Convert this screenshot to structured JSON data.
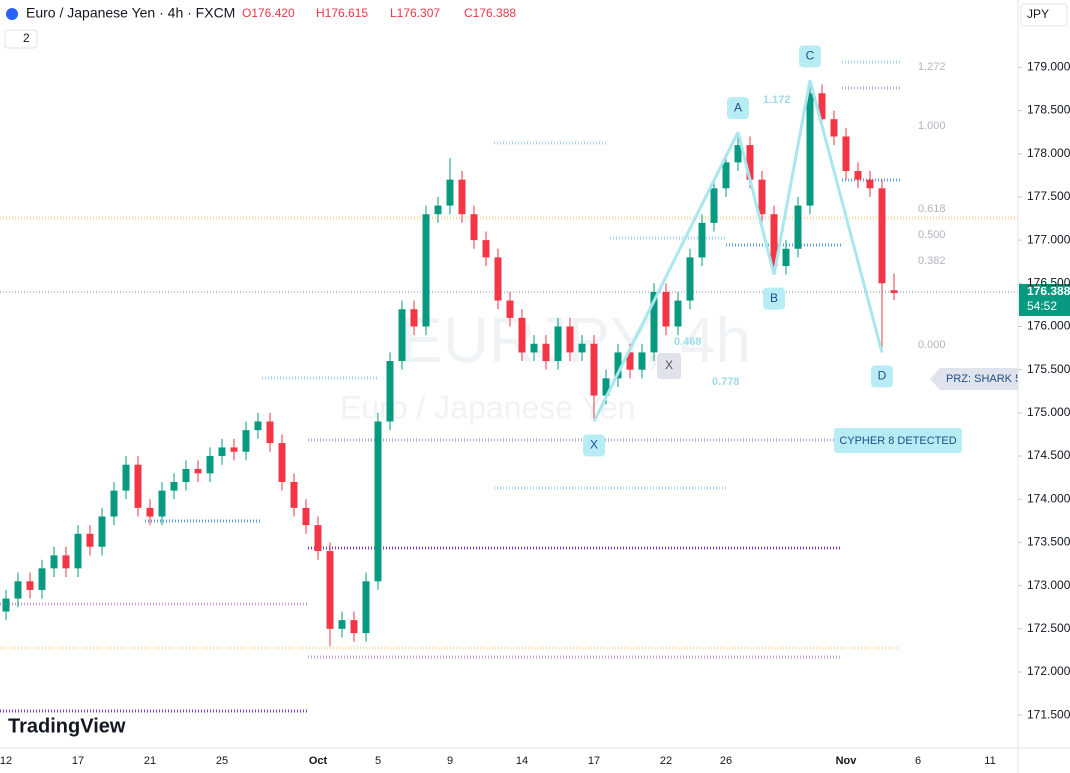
{
  "header": {
    "symbol": "Euro / Japanese Yen · 4h · FXCM",
    "ohlc": [
      "O176.420",
      "H176.615",
      "L176.307",
      "C176.388"
    ],
    "indicator_count": "2",
    "currency": "JPY",
    "price_tag": "176.388",
    "countdown": "54:52",
    "watermark": "EURJPY, 4h",
    "watermark_sub": "Euro / Japanese Yen",
    "logo": "TradingView"
  },
  "chart_data": {
    "type": "candlestick",
    "categories": [
      "12",
      null,
      null,
      null,
      null,
      null,
      "17",
      null,
      null,
      null,
      null,
      null,
      "21",
      null,
      null,
      null,
      null,
      null,
      "25",
      null,
      null,
      null,
      null,
      null,
      null,
      null,
      "Oct",
      null,
      null,
      null,
      null,
      "5",
      null,
      null,
      null,
      null,
      null,
      "9",
      null,
      null,
      null,
      null,
      null,
      "14",
      null,
      null,
      null,
      null,
      null,
      "17",
      null,
      null,
      null,
      null,
      null,
      "22",
      null,
      null,
      null,
      null,
      "26",
      null,
      null,
      null,
      null,
      null,
      null,
      null,
      null,
      null,
      "Nov",
      null,
      null,
      null,
      null,
      null,
      "6",
      null,
      null,
      null,
      null,
      null,
      "11",
      null
    ],
    "open": [
      172.7,
      172.85,
      173.05,
      172.95,
      173.2,
      173.35,
      173.2,
      173.6,
      173.45,
      173.8,
      174.1,
      174.4,
      173.9,
      173.8,
      174.1,
      174.2,
      174.35,
      174.3,
      174.5,
      174.6,
      174.55,
      174.8,
      174.9,
      174.65,
      174.2,
      173.9,
      173.7,
      173.4,
      172.5,
      172.6,
      172.45,
      173.05,
      174.9,
      175.6,
      176.2,
      176.0,
      177.3,
      177.4,
      177.7,
      177.3,
      177.0,
      176.8,
      176.3,
      176.1,
      175.7,
      175.8,
      175.6,
      176.0,
      175.7,
      175.8,
      175.2,
      175.4,
      175.7,
      175.5,
      175.7,
      176.4,
      176.0,
      176.3,
      176.8,
      177.2,
      177.6,
      177.9,
      178.1,
      177.7,
      177.3,
      176.7,
      176.9,
      177.4,
      178.7,
      178.4,
      178.2,
      177.8,
      177.7,
      177.6,
      176.42,
      null,
      null,
      null,
      null,
      null,
      null,
      null,
      null,
      null
    ],
    "high": [
      172.95,
      173.15,
      173.15,
      173.3,
      173.45,
      173.45,
      173.7,
      173.7,
      173.9,
      174.2,
      174.5,
      174.5,
      174.0,
      174.2,
      174.3,
      174.45,
      174.45,
      174.6,
      174.7,
      174.7,
      174.9,
      175.0,
      175.0,
      174.75,
      174.3,
      174.0,
      173.8,
      173.5,
      172.7,
      172.7,
      173.15,
      175.0,
      175.7,
      176.3,
      176.3,
      177.4,
      177.5,
      177.95,
      177.8,
      177.4,
      177.1,
      176.9,
      176.4,
      176.2,
      175.9,
      175.9,
      176.1,
      176.1,
      175.9,
      175.9,
      175.5,
      175.8,
      175.8,
      175.8,
      176.5,
      176.5,
      176.4,
      176.9,
      177.3,
      177.7,
      178.0,
      178.25,
      178.2,
      177.8,
      177.4,
      177.0,
      177.5,
      178.85,
      178.8,
      178.5,
      178.3,
      177.9,
      177.8,
      177.7,
      176.615,
      null,
      null,
      null,
      null,
      null,
      null,
      null,
      null,
      null
    ],
    "low": [
      172.6,
      172.75,
      172.85,
      172.85,
      173.1,
      173.1,
      173.1,
      173.35,
      173.35,
      173.7,
      174.0,
      173.8,
      173.7,
      173.7,
      174.0,
      174.1,
      174.2,
      174.2,
      174.4,
      174.45,
      174.45,
      174.7,
      174.55,
      174.1,
      173.8,
      173.6,
      173.3,
      172.3,
      172.4,
      172.35,
      172.35,
      172.95,
      174.8,
      175.5,
      175.9,
      175.9,
      177.2,
      177.3,
      177.2,
      176.9,
      176.7,
      176.2,
      176.0,
      175.6,
      175.6,
      175.5,
      175.5,
      175.6,
      175.6,
      174.9,
      175.1,
      175.3,
      175.4,
      175.4,
      175.6,
      175.9,
      175.9,
      176.2,
      176.7,
      177.1,
      177.5,
      177.8,
      177.6,
      177.2,
      176.6,
      176.6,
      176.8,
      177.3,
      178.3,
      178.1,
      177.7,
      177.6,
      177.5,
      175.7,
      176.307,
      null,
      null,
      null,
      null,
      null,
      null,
      null,
      null,
      null
    ],
    "close": [
      172.85,
      173.05,
      172.95,
      173.2,
      173.35,
      173.2,
      173.6,
      173.45,
      173.8,
      174.1,
      174.4,
      173.9,
      173.8,
      174.1,
      174.2,
      174.35,
      174.3,
      174.5,
      174.6,
      174.55,
      174.8,
      174.9,
      174.65,
      174.2,
      173.9,
      173.7,
      173.4,
      172.5,
      172.6,
      172.45,
      173.05,
      174.9,
      175.6,
      176.2,
      176.0,
      177.3,
      177.4,
      177.7,
      177.3,
      177.0,
      176.8,
      176.3,
      176.1,
      175.7,
      175.8,
      175.6,
      176.0,
      175.7,
      175.8,
      175.2,
      175.4,
      175.7,
      175.5,
      175.7,
      176.4,
      176.0,
      176.3,
      176.8,
      177.2,
      177.6,
      177.9,
      178.1,
      177.7,
      177.3,
      176.7,
      176.9,
      177.4,
      178.7,
      178.4,
      178.2,
      177.8,
      177.7,
      177.6,
      176.5,
      176.388,
      null,
      null,
      null,
      null,
      null,
      null,
      null,
      null,
      null
    ],
    "up_color": "#089981",
    "down_color": "#f23645",
    "ylim": [
      171.12,
      179.78
    ],
    "yticks": [
      {
        "value": 171.5,
        "label": "171.500"
      },
      {
        "value": 172,
        "label": "172.000"
      },
      {
        "value": 172.5,
        "label": "172.500"
      },
      {
        "value": 173,
        "label": "173.000"
      },
      {
        "value": 173.5,
        "label": "173.500"
      },
      {
        "value": 174,
        "label": "174.000"
      },
      {
        "value": 174.5,
        "label": "174.500"
      },
      {
        "value": 175,
        "label": "175.000"
      },
      {
        "value": 175.5,
        "label": "175.500"
      },
      {
        "value": 176,
        "label": "176.000"
      },
      {
        "value": 176.5,
        "label": "176.500"
      },
      {
        "value": 177,
        "label": "177.000"
      },
      {
        "value": 177.5,
        "label": "177.500"
      },
      {
        "value": 178,
        "label": "178.000"
      },
      {
        "value": 178.5,
        "label": "178.500"
      },
      {
        "value": 179,
        "label": "179.000"
      }
    ],
    "pattern_points": [
      "X",
      "A",
      "B",
      "C",
      "D"
    ],
    "fib_labels": [
      "1.272",
      "1.000",
      "0.618",
      "0.500",
      "0.382",
      "0.000",
      "0.468",
      "0.778",
      "1.172",
      "X"
    ],
    "annotations": [
      "PRZ: SHARK 5",
      "CYPHER 8 DETECTED"
    ]
  }
}
